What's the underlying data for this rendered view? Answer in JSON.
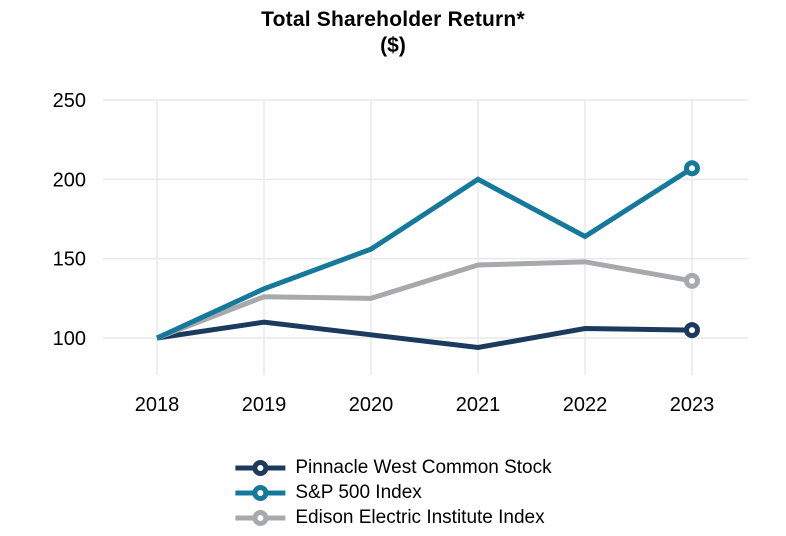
{
  "title": {
    "line1": "Total Shareholder Return*",
    "line2": "($)"
  },
  "chart_data": {
    "type": "line",
    "title": "Total Shareholder Return*",
    "subtitle": "($)",
    "xlabel": "",
    "ylabel": "",
    "categories": [
      "2018",
      "2019",
      "2020",
      "2021",
      "2022",
      "2023"
    ],
    "y_ticks": [
      100,
      150,
      200,
      250
    ],
    "ylim": [
      100,
      250
    ],
    "grid": true,
    "legend_position": "bottom-center",
    "end_marker": "open-ring-at-last-point",
    "series": [
      {
        "name": "Pinnacle West Common Stock",
        "color": "#1c3a5e",
        "values": [
          100,
          110,
          102,
          94,
          106,
          105
        ]
      },
      {
        "name": "S&P 500 Index",
        "color": "#15799c",
        "values": [
          100,
          131,
          156,
          200,
          164,
          207
        ]
      },
      {
        "name": "Edison Electric Institute Index",
        "color": "#a7a9ac",
        "values": [
          100,
          126,
          125,
          146,
          148,
          136
        ]
      }
    ]
  },
  "style": {
    "grid_color": "#e9e9e9",
    "text_color": "#000000",
    "background": "#ffffff"
  }
}
